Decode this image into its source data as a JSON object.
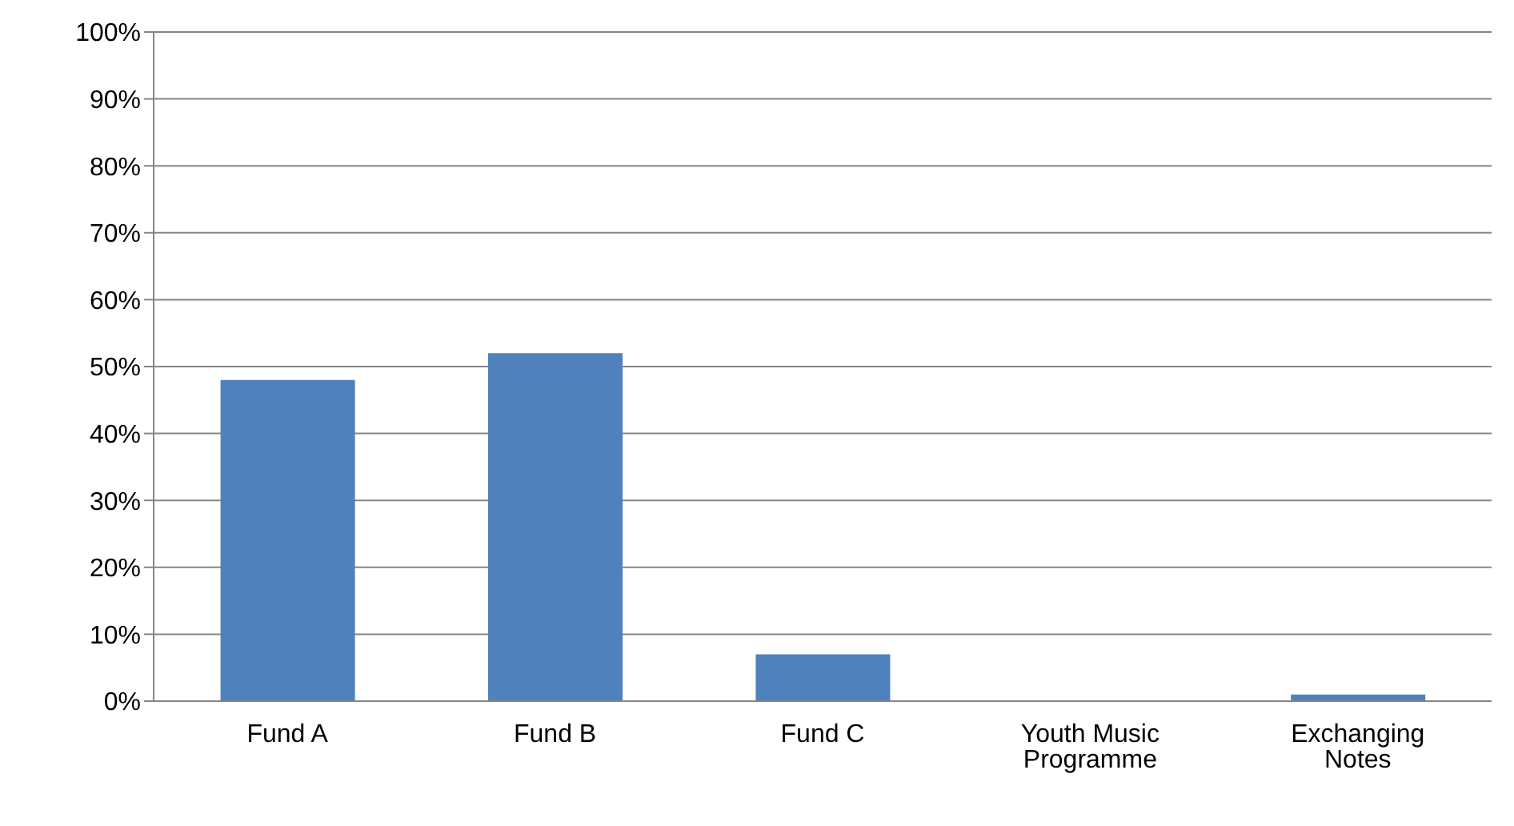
{
  "chart_data": {
    "type": "bar",
    "categories": [
      "Fund A",
      "Fund B",
      "Fund C",
      "Youth Music Programme",
      "Exchanging Notes"
    ],
    "values": [
      48,
      52,
      7,
      0,
      1
    ],
    "color": "#4f81bd",
    "ylim": [
      0,
      100
    ],
    "yticks": [
      {
        "value": 0,
        "label": "0%"
      },
      {
        "value": 10,
        "label": "10%"
      },
      {
        "value": 20,
        "label": "20%"
      },
      {
        "value": 30,
        "label": "30%"
      },
      {
        "value": 40,
        "label": "40%"
      },
      {
        "value": 50,
        "label": "50%"
      },
      {
        "value": 60,
        "label": "60%"
      },
      {
        "value": 70,
        "label": "70%"
      },
      {
        "value": 80,
        "label": "80%"
      },
      {
        "value": 90,
        "label": "90%"
      },
      {
        "value": 100,
        "label": "100%"
      }
    ],
    "grid": "y",
    "legend": false
  }
}
